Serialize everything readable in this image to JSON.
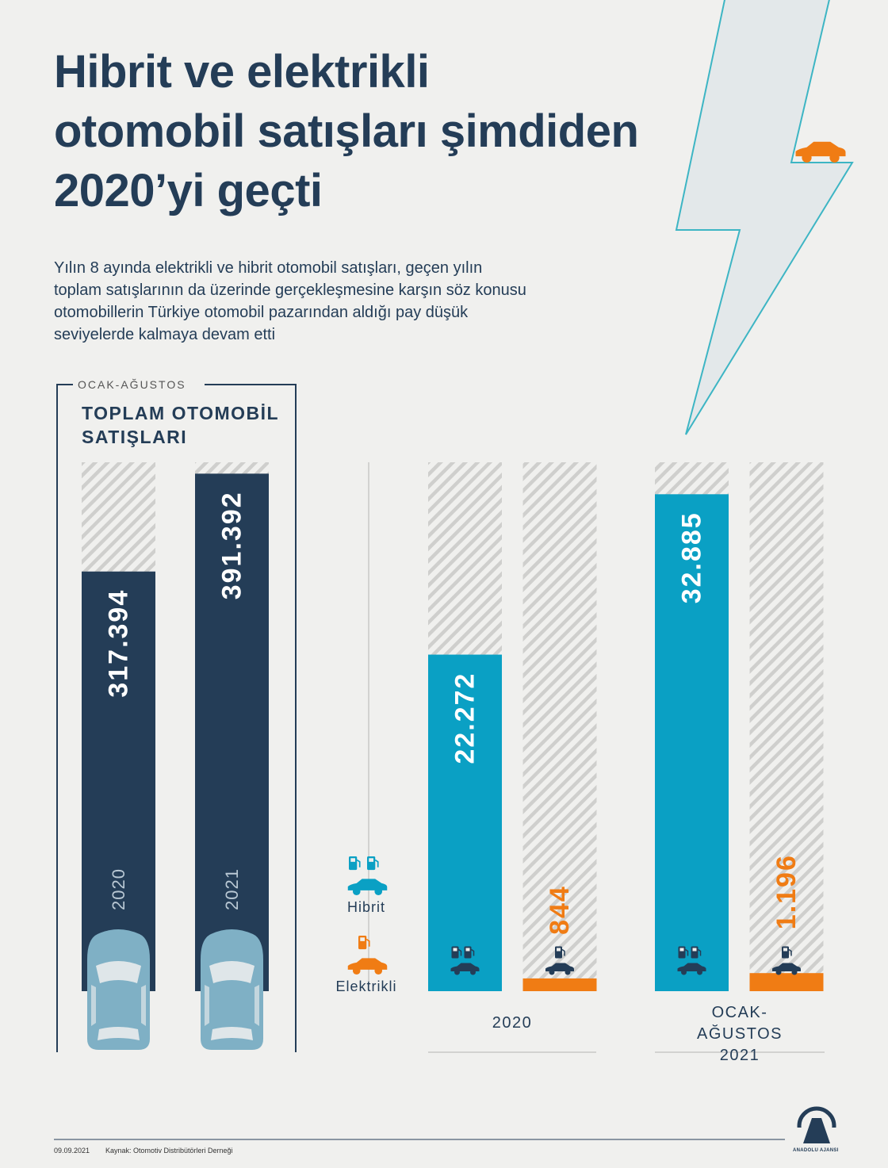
{
  "header": {
    "title_lines": [
      "Hibrit ve elektrikli",
      "otomobil satışları şimdiden",
      "2020’yi geçti"
    ],
    "subtitle_lines": [
      "Yılın 8 ayında elektrikli ve hibrit otomobil satışları, geçen yılın",
      "toplam satışlarının da üzerinde gerçekleşmesine karşın söz konusu",
      "otomobillerin Türkiye otomobil pazarından aldığı pay düşük",
      "seviyelerde kalmaya devam etti"
    ]
  },
  "chart_data": [
    {
      "type": "bar",
      "period": "OCAK-AĞUSTOS",
      "title": "TOPLAM OTOMOBİL SATIŞLARI",
      "categories": [
        "2020",
        "2021"
      ],
      "values": [
        317394,
        391392
      ],
      "value_labels": [
        "317.394",
        "391.392"
      ],
      "color": "#243d57",
      "ylim": [
        0,
        400000
      ]
    },
    {
      "type": "grouped_bar",
      "categories": [
        "2020",
        "OCAK-AĞUSTOS 2021"
      ],
      "series": [
        {
          "name": "Hibrit",
          "color": "#0aa0c4",
          "values": [
            22272,
            32885
          ],
          "value_labels": [
            "22.272",
            "32.885"
          ]
        },
        {
          "name": "Elektrikli",
          "color": "#f07c14",
          "values": [
            844,
            1196
          ],
          "value_labels": [
            "844",
            "1.196"
          ]
        }
      ],
      "ylim": [
        0,
        35000
      ]
    }
  ],
  "footer": {
    "date": "09.09.2021",
    "source": "Kaynak: Otomotiv Distribütörleri Derneği",
    "agency": "ANADOLU AJANSI"
  }
}
